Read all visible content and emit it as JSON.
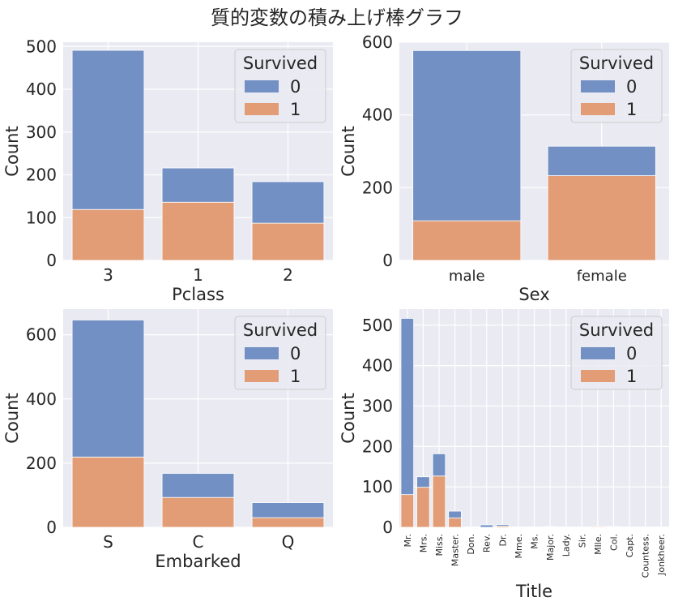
{
  "figure": {
    "title": "質的変数の積み上げ棒グラフ",
    "colors": {
      "survived_0": "#7390c4",
      "survived_1": "#e29d76",
      "plot_bg": "#eaeaf2",
      "grid": "#ffffff"
    }
  },
  "chart_data": [
    {
      "type": "bar",
      "stacked": true,
      "title": "",
      "xlabel": "Pclass",
      "ylabel": "Count",
      "categories": [
        "3",
        "1",
        "2"
      ],
      "series": [
        {
          "name": "0",
          "values": [
            372,
            80,
            97
          ]
        },
        {
          "name": "1",
          "values": [
            119,
            136,
            87
          ]
        }
      ],
      "totals": [
        491,
        216,
        184
      ],
      "ylim": [
        0,
        510
      ],
      "yticks": [
        0,
        100,
        200,
        300,
        400,
        500
      ],
      "legend": {
        "title": "Survived",
        "placement": "top-right"
      },
      "grid": true
    },
    {
      "type": "bar",
      "stacked": true,
      "title": "",
      "xlabel": "Sex",
      "ylabel": "Count",
      "categories": [
        "male",
        "female"
      ],
      "series": [
        {
          "name": "0",
          "values": [
            468,
            81
          ]
        },
        {
          "name": "1",
          "values": [
            109,
            233
          ]
        }
      ],
      "totals": [
        577,
        314
      ],
      "ylim": [
        0,
        600
      ],
      "yticks": [
        0,
        200,
        400,
        600
      ],
      "legend": {
        "title": "Survived",
        "placement": "top-right"
      },
      "grid": true
    },
    {
      "type": "bar",
      "stacked": true,
      "title": "",
      "xlabel": "Embarked",
      "ylabel": "Count",
      "categories": [
        "S",
        "C",
        "Q"
      ],
      "series": [
        {
          "name": "0",
          "values": [
            427,
            75,
            47
          ]
        },
        {
          "name": "1",
          "values": [
            219,
            93,
            30
          ]
        }
      ],
      "totals": [
        646,
        168,
        77
      ],
      "ylim": [
        0,
        680
      ],
      "yticks": [
        0,
        200,
        400,
        600
      ],
      "legend": {
        "title": "Survived",
        "placement": "top-right"
      },
      "grid": true
    },
    {
      "type": "bar",
      "stacked": true,
      "title": "",
      "xlabel": "Title",
      "ylabel": "Count",
      "categories": [
        "Mr.",
        "Mrs.",
        "Miss.",
        "Master.",
        "Don.",
        "Rev.",
        "Dr.",
        "Mme.",
        "Ms.",
        "Major.",
        "Lady.",
        "Sir.",
        "Mlle.",
        "Col.",
        "Capt.",
        "Countess.",
        "Jonkheer."
      ],
      "series": [
        {
          "name": "0",
          "values": [
            436,
            26,
            55,
            17,
            1,
            6,
            4,
            0,
            0,
            1,
            0,
            0,
            0,
            1,
            1,
            0,
            1
          ]
        },
        {
          "name": "1",
          "values": [
            81,
            99,
            127,
            23,
            0,
            0,
            3,
            1,
            1,
            1,
            1,
            1,
            2,
            1,
            0,
            1,
            0
          ]
        }
      ],
      "totals": [
        517,
        125,
        182,
        40,
        1,
        6,
        7,
        1,
        1,
        2,
        1,
        1,
        2,
        2,
        1,
        1,
        1
      ],
      "ylim": [
        0,
        540
      ],
      "yticks": [
        0,
        100,
        200,
        300,
        400,
        500
      ],
      "legend": {
        "title": "Survived",
        "placement": "top-right"
      },
      "grid": true
    }
  ]
}
